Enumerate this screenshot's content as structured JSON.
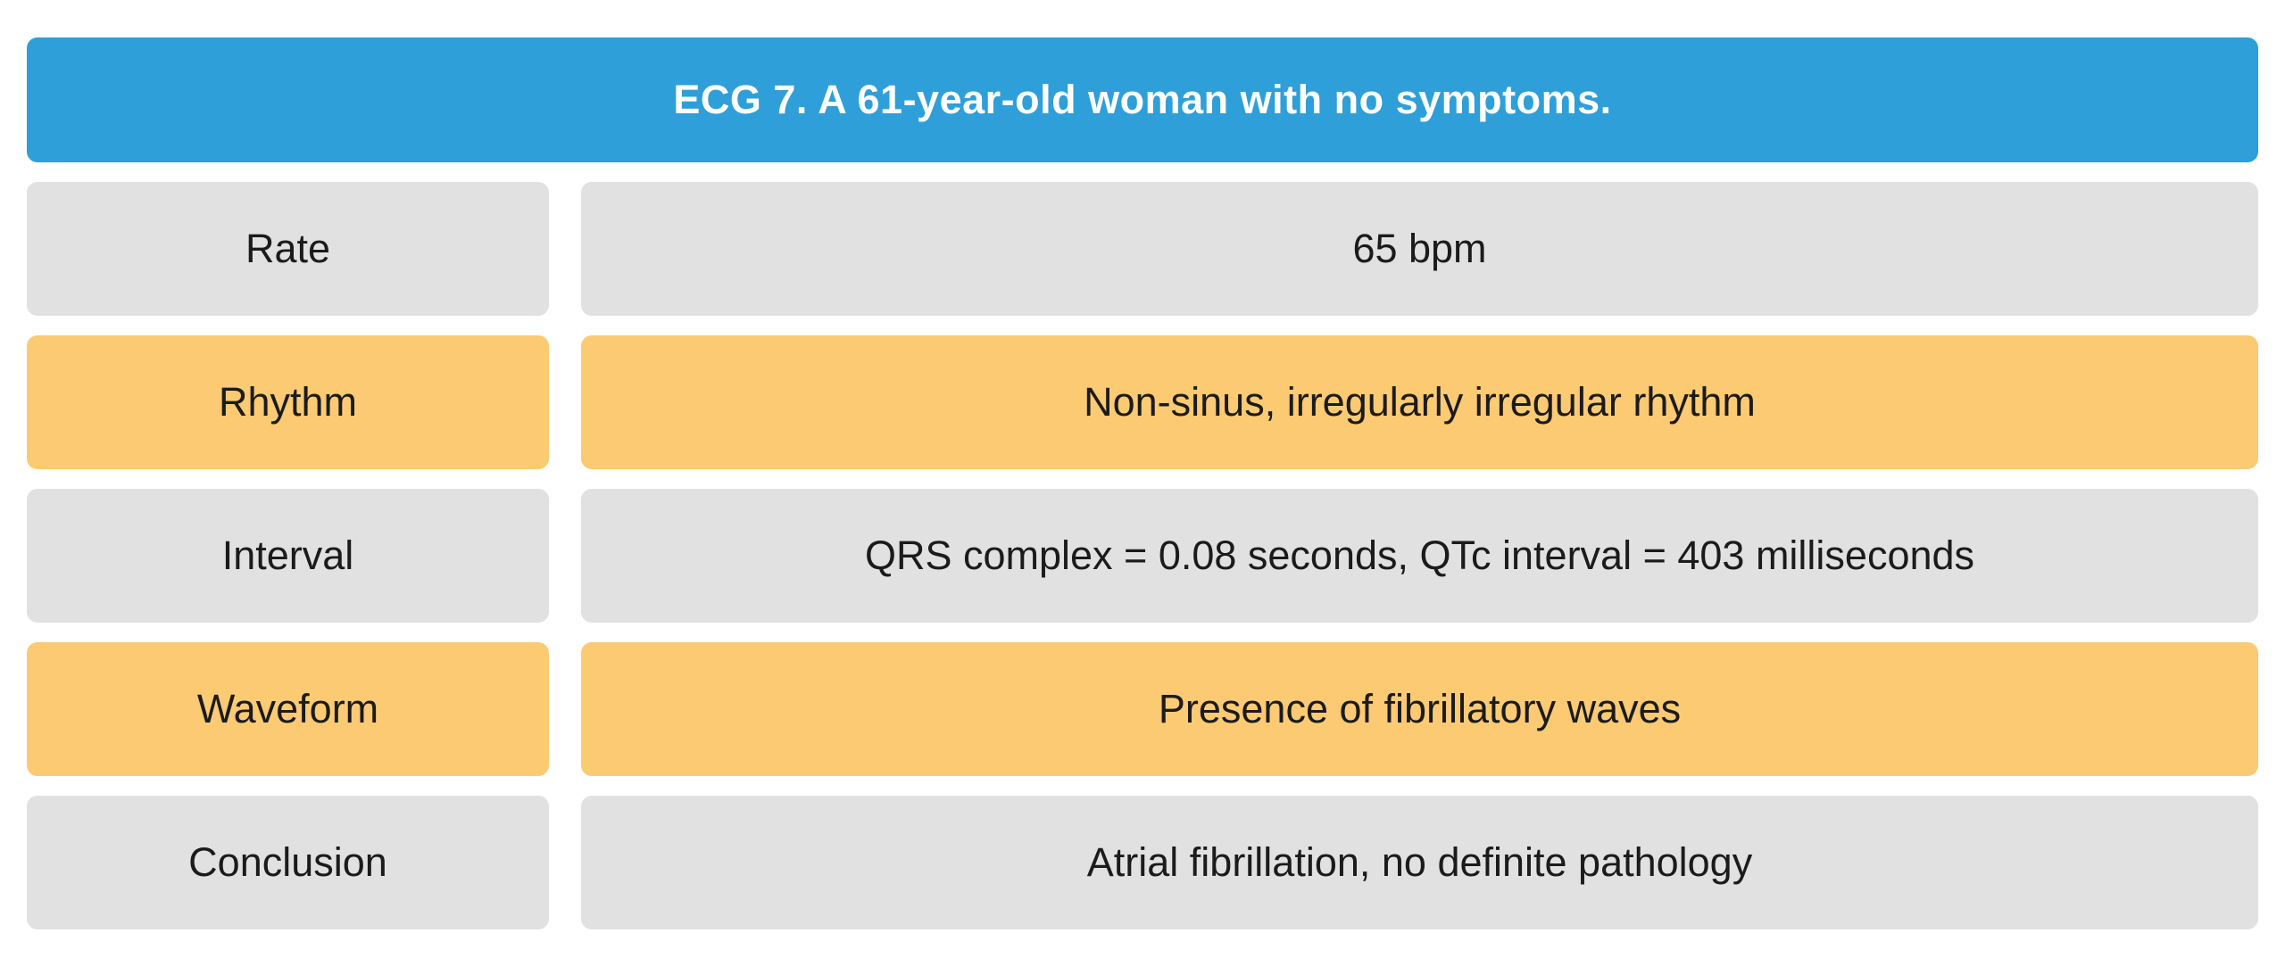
{
  "palette": {
    "page_bg": "#FFFFFF",
    "header_bg": "#2E9FD8",
    "header_text": "#FFFFFF",
    "row_bg": "#E1E1E1",
    "highlight_bg": "#FCCA73",
    "cell_text": "#1B1B1B"
  },
  "header": {
    "title": "ECG 7. A 61-year-old woman with no symptoms."
  },
  "table": {
    "rows": [
      {
        "label": "Rate",
        "value": "65 bpm",
        "highlight": false
      },
      {
        "label": "Rhythm",
        "value": "Non-sinus, irregularly irregular rhythm",
        "highlight": true
      },
      {
        "label": "Interval",
        "value": "QRS complex = 0.08 seconds, QTc interval = 403 milliseconds",
        "highlight": false
      },
      {
        "label": "Waveform",
        "value": "Presence of fibrillatory waves",
        "highlight": true
      },
      {
        "label": "Conclusion",
        "value": "Atrial fibrillation, no definite pathology",
        "highlight": false
      }
    ]
  }
}
